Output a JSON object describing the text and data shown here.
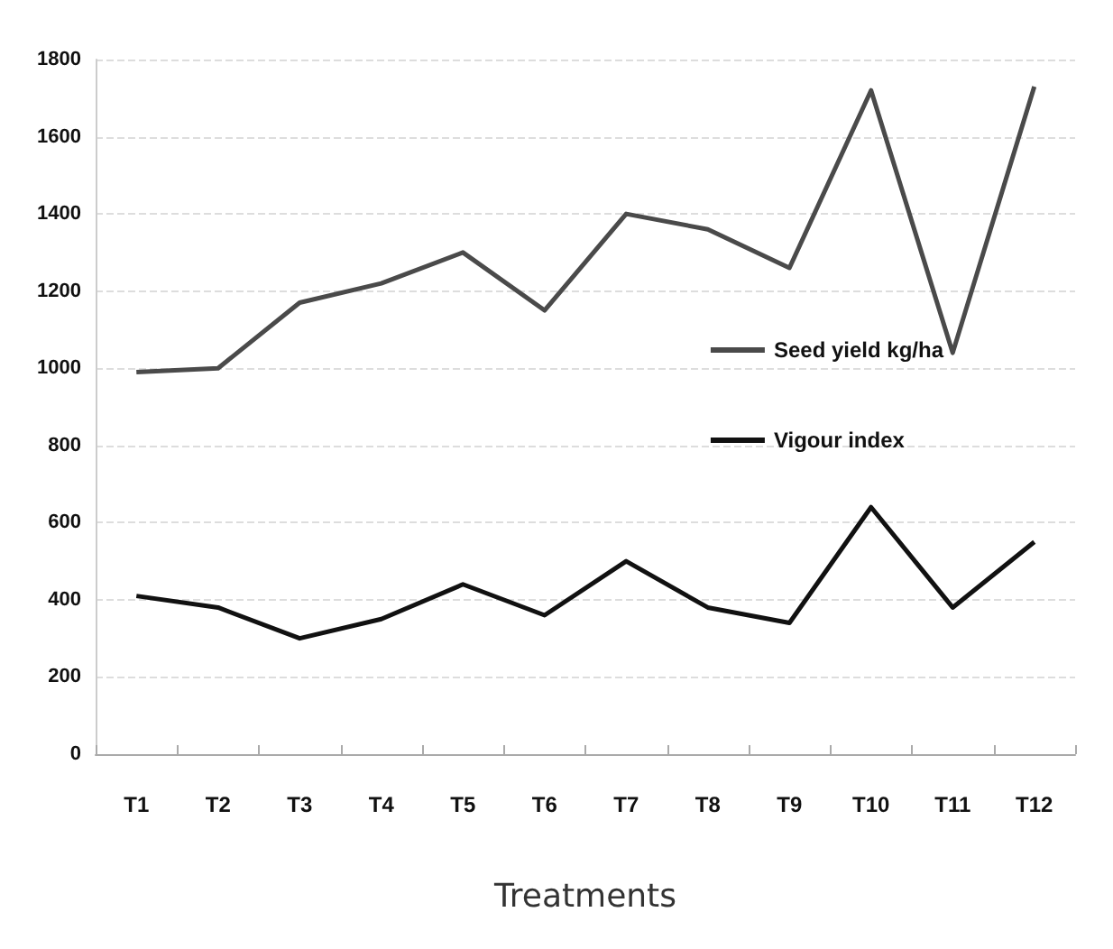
{
  "chart_data": {
    "type": "line",
    "xlabel": "Treatments",
    "categories": [
      "T1",
      "T2",
      "T3",
      "T4",
      "T5",
      "T6",
      "T7",
      "T8",
      "T9",
      "T10",
      "T11",
      "T12"
    ],
    "series": [
      {
        "name": "Seed yield kg/ha",
        "color": "#4a4a4a",
        "values": [
          990,
          1000,
          1170,
          1220,
          1300,
          1150,
          1400,
          1360,
          1260,
          1720,
          1040,
          1730
        ]
      },
      {
        "name": "Vigour index",
        "color": "#111111",
        "values": [
          410,
          380,
          300,
          350,
          440,
          360,
          500,
          380,
          340,
          640,
          380,
          550
        ]
      }
    ],
    "ylim": [
      0,
      1800
    ],
    "yticks": [
      0,
      200,
      400,
      600,
      800,
      1000,
      1200,
      1400,
      1600,
      1800
    ],
    "grid": "y",
    "legend": "right",
    "marker": "none",
    "line_style": "solid"
  }
}
